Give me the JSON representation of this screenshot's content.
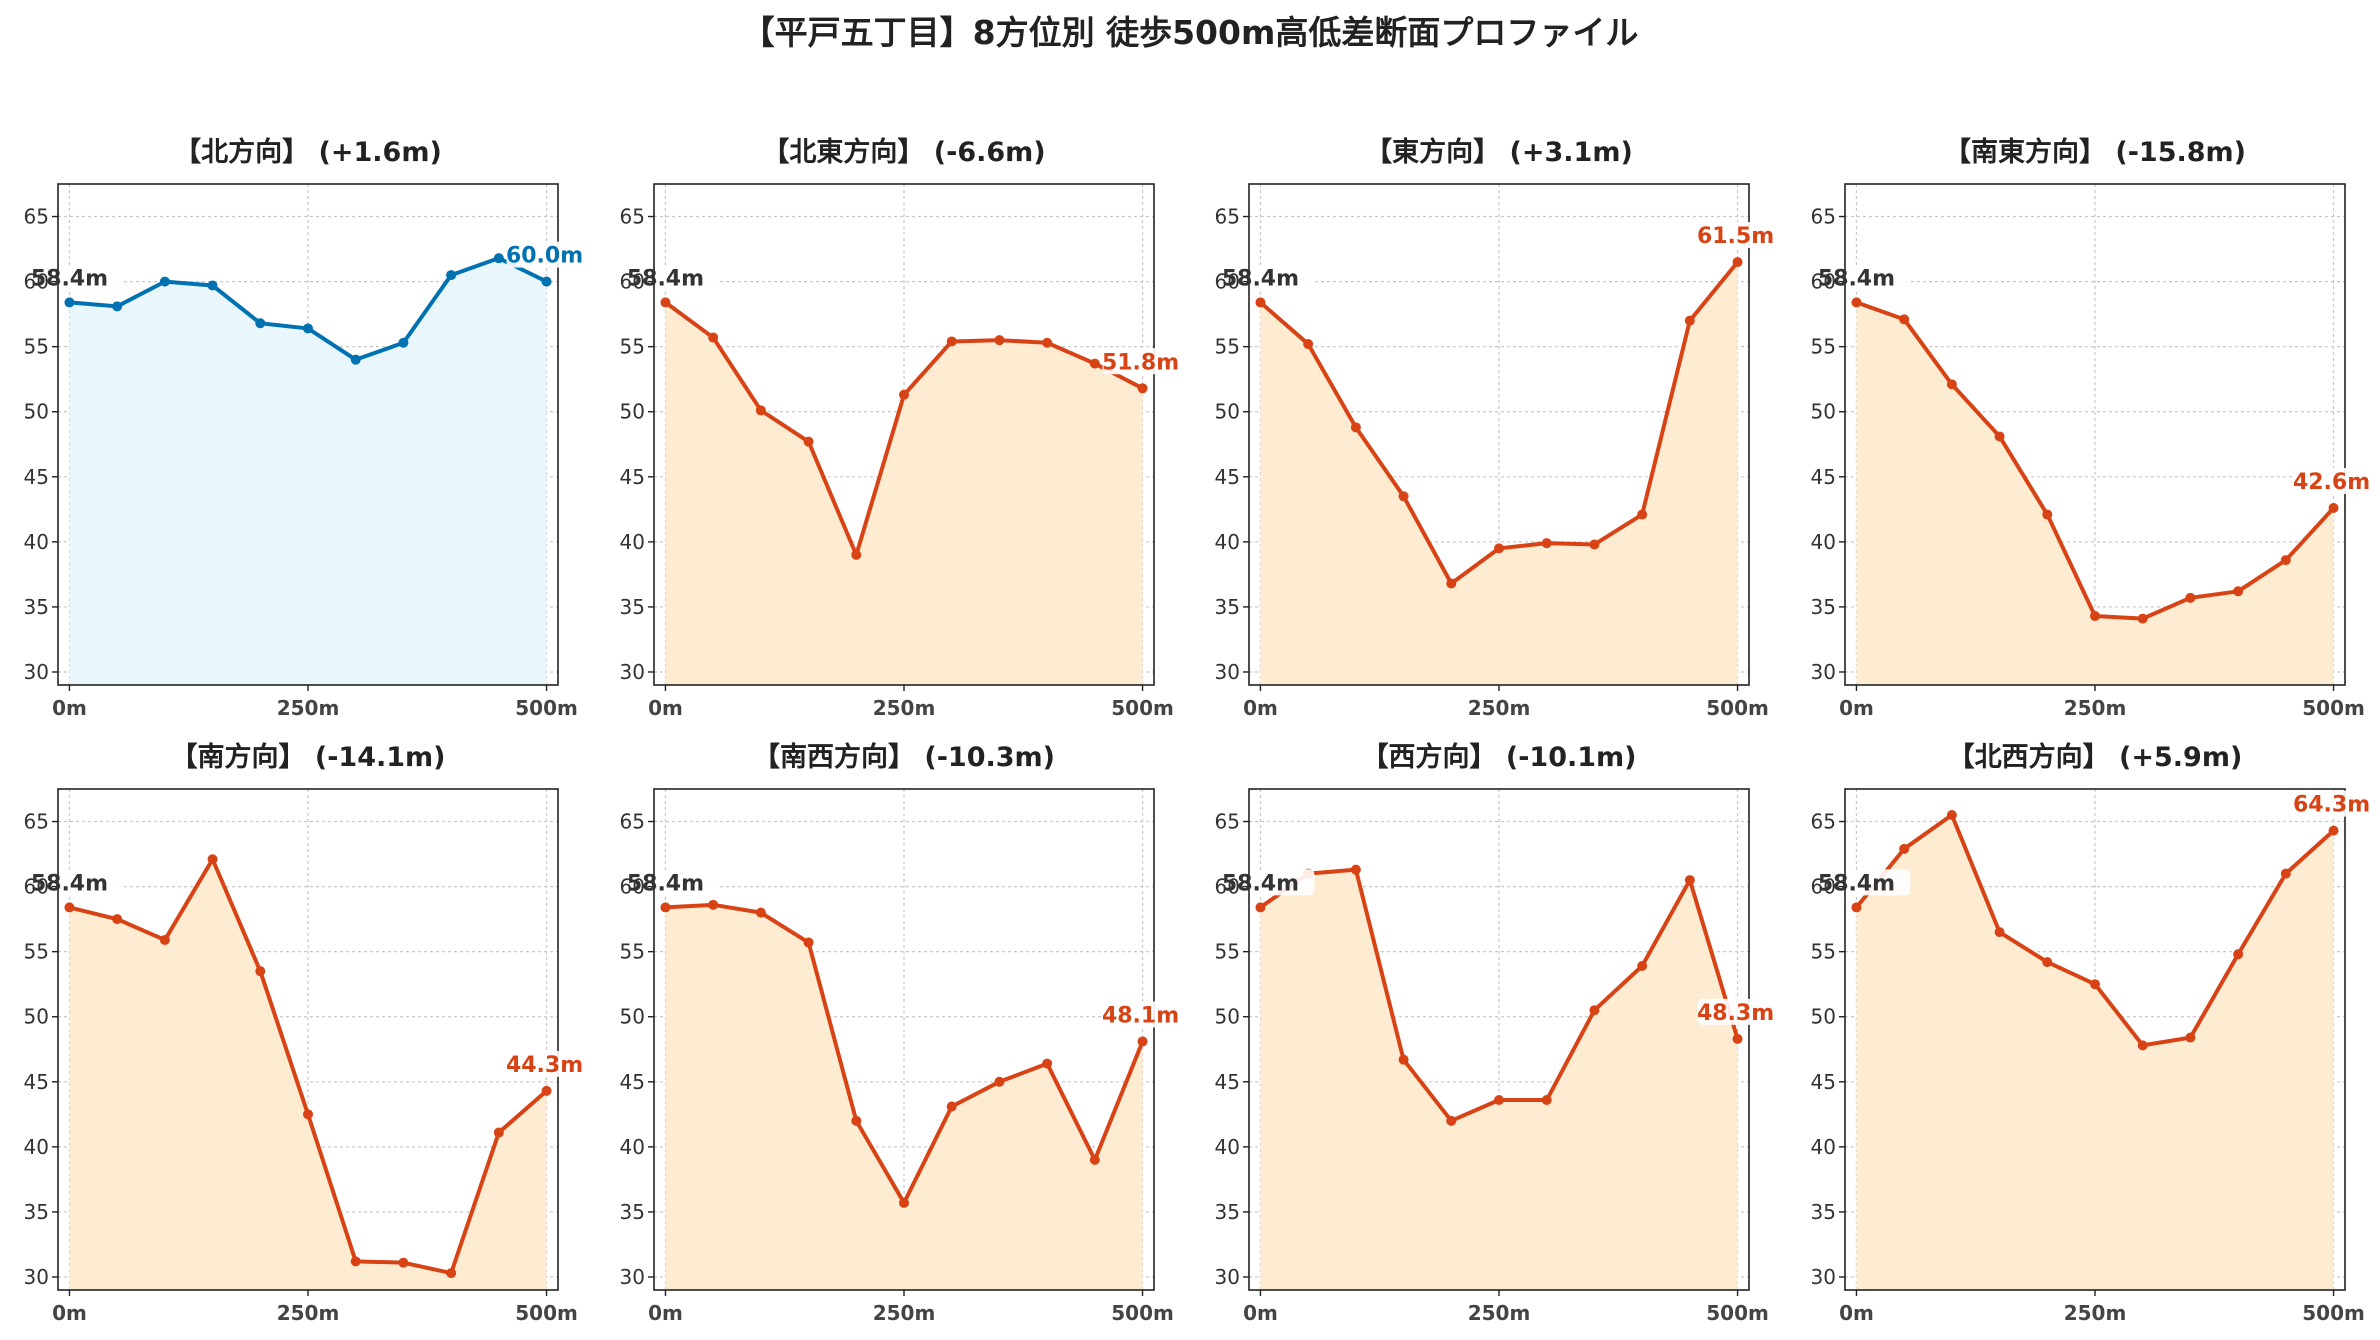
{
  "title": "【平戸五丁目】8方位別 徒歩500m高低差断面プロファイル",
  "colors": {
    "up_line": "#0072b2",
    "up_fill": "#e9f6fc",
    "down_line": "#d84315",
    "down_fill": "#fdecd2",
    "start_label": "#333333"
  },
  "chart_data": [
    {
      "type": "area",
      "title": "【北方向】 (+1.6m)",
      "color_key": "up",
      "x": [
        0,
        50,
        100,
        150,
        200,
        250,
        300,
        350,
        400,
        450,
        500
      ],
      "y": [
        58.4,
        58.1,
        60.0,
        59.7,
        56.8,
        56.4,
        54.0,
        55.3,
        60.5,
        61.8,
        60.0
      ],
      "xticks": [
        "0m",
        "250m",
        "500m"
      ],
      "xtick_values": [
        0,
        250,
        500
      ],
      "yticks": [
        30,
        35,
        40,
        45,
        50,
        55,
        60,
        65
      ],
      "ylim": [
        29,
        67.5
      ],
      "xlim": [
        -12,
        512
      ],
      "start_label": "58.4m",
      "end_label": "60.0m",
      "grid": true
    },
    {
      "type": "area",
      "title": "【北東方向】 (-6.6m)",
      "color_key": "down",
      "x": [
        0,
        50,
        100,
        150,
        200,
        250,
        300,
        350,
        400,
        450,
        500
      ],
      "y": [
        58.4,
        55.7,
        50.1,
        47.7,
        39.0,
        51.3,
        55.4,
        55.5,
        55.3,
        53.7,
        51.8
      ],
      "xticks": [
        "0m",
        "250m",
        "500m"
      ],
      "xtick_values": [
        0,
        250,
        500
      ],
      "yticks": [
        30,
        35,
        40,
        45,
        50,
        55,
        60,
        65
      ],
      "ylim": [
        29,
        67.5
      ],
      "xlim": [
        -12,
        512
      ],
      "start_label": "58.4m",
      "end_label": "51.8m",
      "grid": true
    },
    {
      "type": "area",
      "title": "【東方向】 (+3.1m)",
      "color_key": "down",
      "x": [
        0,
        50,
        100,
        150,
        200,
        250,
        300,
        350,
        400,
        450,
        500
      ],
      "y": [
        58.4,
        55.2,
        48.8,
        43.5,
        36.8,
        39.5,
        39.9,
        39.8,
        42.1,
        57.0,
        61.5
      ],
      "xticks": [
        "0m",
        "250m",
        "500m"
      ],
      "xtick_values": [
        0,
        250,
        500
      ],
      "yticks": [
        30,
        35,
        40,
        45,
        50,
        55,
        60,
        65
      ],
      "ylim": [
        29,
        67.5
      ],
      "xlim": [
        -12,
        512
      ],
      "start_label": "58.4m",
      "end_label": "61.5m",
      "grid": true
    },
    {
      "type": "area",
      "title": "【南東方向】 (-15.8m)",
      "color_key": "down",
      "x": [
        0,
        50,
        100,
        150,
        200,
        250,
        300,
        350,
        400,
        450,
        500
      ],
      "y": [
        58.4,
        57.1,
        52.1,
        48.1,
        42.1,
        34.3,
        34.1,
        35.7,
        36.2,
        38.6,
        42.6
      ],
      "xticks": [
        "0m",
        "250m",
        "500m"
      ],
      "xtick_values": [
        0,
        250,
        500
      ],
      "yticks": [
        30,
        35,
        40,
        45,
        50,
        55,
        60,
        65
      ],
      "ylim": [
        29,
        67.5
      ],
      "xlim": [
        -12,
        512
      ],
      "start_label": "58.4m",
      "end_label": "42.6m",
      "grid": true
    },
    {
      "type": "area",
      "title": "【南方向】 (-14.1m)",
      "color_key": "down",
      "x": [
        0,
        50,
        100,
        150,
        200,
        250,
        300,
        350,
        400,
        450,
        500
      ],
      "y": [
        58.4,
        57.5,
        55.9,
        62.1,
        53.5,
        42.5,
        31.2,
        31.1,
        30.3,
        41.1,
        44.3
      ],
      "xticks": [
        "0m",
        "250m",
        "500m"
      ],
      "xtick_values": [
        0,
        250,
        500
      ],
      "yticks": [
        30,
        35,
        40,
        45,
        50,
        55,
        60,
        65
      ],
      "ylim": [
        29,
        67.5
      ],
      "xlim": [
        -12,
        512
      ],
      "start_label": "58.4m",
      "end_label": "44.3m",
      "grid": true
    },
    {
      "type": "area",
      "title": "【南西方向】 (-10.3m)",
      "color_key": "down",
      "x": [
        0,
        50,
        100,
        150,
        200,
        250,
        300,
        350,
        400,
        450,
        500
      ],
      "y": [
        58.4,
        58.6,
        58.0,
        55.7,
        42.0,
        35.7,
        43.1,
        45.0,
        46.4,
        39.0,
        48.1
      ],
      "xticks": [
        "0m",
        "250m",
        "500m"
      ],
      "xtick_values": [
        0,
        250,
        500
      ],
      "yticks": [
        30,
        35,
        40,
        45,
        50,
        55,
        60,
        65
      ],
      "ylim": [
        29,
        67.5
      ],
      "xlim": [
        -12,
        512
      ],
      "start_label": "58.4m",
      "end_label": "48.1m",
      "grid": true
    },
    {
      "type": "area",
      "title": "【西方向】 (-10.1m)",
      "color_key": "down",
      "x": [
        0,
        50,
        100,
        150,
        200,
        250,
        300,
        350,
        400,
        450,
        500
      ],
      "y": [
        58.4,
        61.0,
        61.3,
        46.7,
        42.0,
        43.6,
        43.6,
        50.5,
        53.9,
        60.5,
        48.3
      ],
      "xticks": [
        "0m",
        "250m",
        "500m"
      ],
      "xtick_values": [
        0,
        250,
        500
      ],
      "yticks": [
        30,
        35,
        40,
        45,
        50,
        55,
        60,
        65
      ],
      "ylim": [
        29,
        67.5
      ],
      "xlim": [
        -12,
        512
      ],
      "start_label": "58.4m",
      "end_label": "48.3m",
      "grid": true
    },
    {
      "type": "area",
      "title": "【北西方向】 (+5.9m)",
      "color_key": "down",
      "x": [
        0,
        50,
        100,
        150,
        200,
        250,
        300,
        350,
        400,
        450,
        500
      ],
      "y": [
        58.4,
        62.9,
        65.5,
        56.5,
        54.2,
        52.5,
        47.8,
        48.4,
        54.8,
        61.0,
        64.3
      ],
      "xticks": [
        "0m",
        "250m",
        "500m"
      ],
      "xtick_values": [
        0,
        250,
        500
      ],
      "yticks": [
        30,
        35,
        40,
        45,
        50,
        55,
        60,
        65
      ],
      "ylim": [
        29,
        67.5
      ],
      "xlim": [
        -12,
        512
      ],
      "start_label": "58.4m",
      "end_label": "64.3m",
      "grid": true
    }
  ]
}
